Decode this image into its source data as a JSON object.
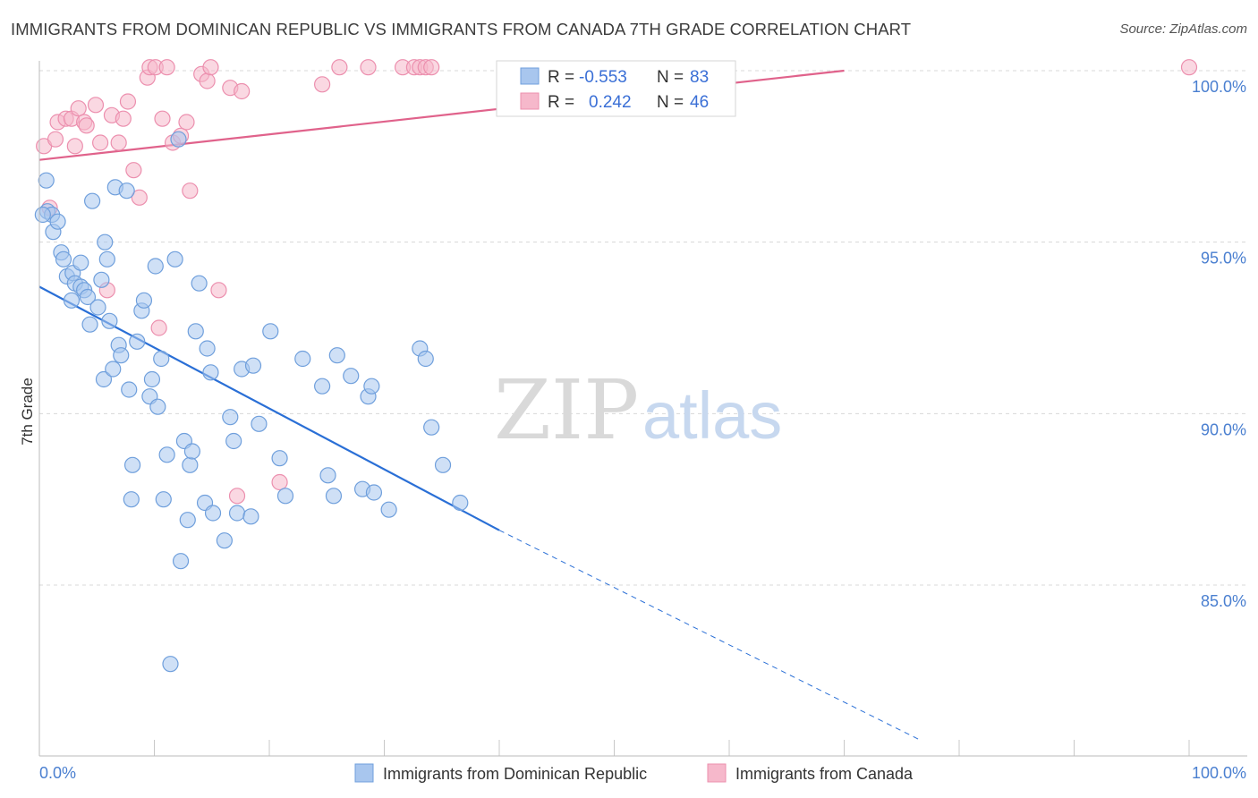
{
  "title": "IMMIGRANTS FROM DOMINICAN REPUBLIC VS IMMIGRANTS FROM CANADA 7TH GRADE CORRELATION CHART",
  "source": "Source: ZipAtlas.com",
  "watermark": {
    "part1": "ZIP",
    "part2": "atlas"
  },
  "colors": {
    "blue_fill": "#a8c6ee",
    "blue_stroke": "#6f9fdc",
    "blue_line": "#2a6fd6",
    "pink_fill": "#f6b8cb",
    "pink_stroke": "#ec8fae",
    "pink_line": "#e0628b",
    "grid": "#d8d8d8",
    "axis_text": "#4a7fd0"
  },
  "stats": {
    "row1": {
      "r_label": "R =",
      "r_value": "-0.553",
      "n_label": "N =",
      "n_value": "83"
    },
    "row2": {
      "r_label": "R =",
      "r_value": "0.242",
      "n_label": "N =",
      "n_value": "46"
    }
  },
  "legend": {
    "series1": "Immigrants from Dominican Republic",
    "series2": "Immigrants from Canada"
  },
  "chart_data": {
    "type": "scatter",
    "title": "IMMIGRANTS FROM DOMINICAN REPUBLIC VS IMMIGRANTS FROM CANADA 7TH GRADE CORRELATION CHART",
    "xlabel": "",
    "ylabel": "7th Grade",
    "xlim": [
      0,
      100
    ],
    "ylim": [
      80.5,
      100.8
    ],
    "x_ticks": [
      "0.0%",
      "100.0%"
    ],
    "y_ticks": [
      {
        "value": 100,
        "label": "100.0%"
      },
      {
        "value": 95,
        "label": "95.0%"
      },
      {
        "value": 90,
        "label": "90.0%"
      },
      {
        "value": 85,
        "label": "85.0%"
      }
    ],
    "grid": true,
    "legend_position": "bottom-center",
    "series": [
      {
        "name": "Immigrants from Dominican Republic",
        "color": "#a8c6ee",
        "r": -0.553,
        "n": 83,
        "trend": {
          "x0": 0,
          "y0": 93.7,
          "x1": 40,
          "y1": 86.6,
          "dash_to_x": 76.5,
          "dash_to_y": 80.5
        },
        "points": [
          [
            0.6,
            96.8
          ],
          [
            0.7,
            95.9
          ],
          [
            1.2,
            95.3
          ],
          [
            1.1,
            95.8
          ],
          [
            1.6,
            95.6
          ],
          [
            1.9,
            94.7
          ],
          [
            2.1,
            94.5
          ],
          [
            2.4,
            94.0
          ],
          [
            2.8,
            93.3
          ],
          [
            2.9,
            94.1
          ],
          [
            3.1,
            93.8
          ],
          [
            3.6,
            93.7
          ],
          [
            3.6,
            94.4
          ],
          [
            3.9,
            93.6
          ],
          [
            4.2,
            93.4
          ],
          [
            4.4,
            92.6
          ],
          [
            4.6,
            96.2
          ],
          [
            5.1,
            93.1
          ],
          [
            5.4,
            93.9
          ],
          [
            5.6,
            91.0
          ],
          [
            5.7,
            95.0
          ],
          [
            5.9,
            94.5
          ],
          [
            6.1,
            92.7
          ],
          [
            6.4,
            91.3
          ],
          [
            6.6,
            96.6
          ],
          [
            6.9,
            92.0
          ],
          [
            7.1,
            91.7
          ],
          [
            7.6,
            96.5
          ],
          [
            7.8,
            90.7
          ],
          [
            8.1,
            88.5
          ],
          [
            8.0,
            87.5
          ],
          [
            8.5,
            92.1
          ],
          [
            8.9,
            93.0
          ],
          [
            9.1,
            93.3
          ],
          [
            9.6,
            90.5
          ],
          [
            9.8,
            91.0
          ],
          [
            10.1,
            94.3
          ],
          [
            10.3,
            90.2
          ],
          [
            10.6,
            91.6
          ],
          [
            10.8,
            87.5
          ],
          [
            11.1,
            88.8
          ],
          [
            11.4,
            82.7
          ],
          [
            11.8,
            94.5
          ],
          [
            12.1,
            98.0
          ],
          [
            12.3,
            85.7
          ],
          [
            12.6,
            89.2
          ],
          [
            12.9,
            86.9
          ],
          [
            13.1,
            88.5
          ],
          [
            13.3,
            88.9
          ],
          [
            13.6,
            92.4
          ],
          [
            13.9,
            93.8
          ],
          [
            14.4,
            87.4
          ],
          [
            14.6,
            91.9
          ],
          [
            14.9,
            91.2
          ],
          [
            15.1,
            87.1
          ],
          [
            16.1,
            86.3
          ],
          [
            16.6,
            89.9
          ],
          [
            16.9,
            89.2
          ],
          [
            17.2,
            87.1
          ],
          [
            17.6,
            91.3
          ],
          [
            18.4,
            87.0
          ],
          [
            18.6,
            91.4
          ],
          [
            19.1,
            89.7
          ],
          [
            20.1,
            92.4
          ],
          [
            20.9,
            88.7
          ],
          [
            21.4,
            87.6
          ],
          [
            22.9,
            91.6
          ],
          [
            24.6,
            90.8
          ],
          [
            25.1,
            88.2
          ],
          [
            25.6,
            87.6
          ],
          [
            25.9,
            91.7
          ],
          [
            27.1,
            91.1
          ],
          [
            28.1,
            87.8
          ],
          [
            28.6,
            90.5
          ],
          [
            28.9,
            90.8
          ],
          [
            29.1,
            87.7
          ],
          [
            30.4,
            87.2
          ],
          [
            33.1,
            91.9
          ],
          [
            33.6,
            91.6
          ],
          [
            34.1,
            89.6
          ],
          [
            35.1,
            88.5
          ],
          [
            36.6,
            87.4
          ],
          [
            0.3,
            95.8
          ]
        ]
      },
      {
        "name": "Immigrants from Canada",
        "color": "#f6b8cb",
        "r": 0.242,
        "n": 46,
        "trend": {
          "x0": 0,
          "y0": 97.4,
          "x1": 70,
          "y1": 100.0
        },
        "points": [
          [
            0.4,
            97.8
          ],
          [
            0.9,
            96.0
          ],
          [
            1.4,
            98.0
          ],
          [
            1.6,
            98.5
          ],
          [
            2.3,
            98.6
          ],
          [
            2.8,
            98.6
          ],
          [
            3.1,
            97.8
          ],
          [
            3.4,
            98.9
          ],
          [
            3.9,
            98.5
          ],
          [
            4.1,
            98.4
          ],
          [
            4.9,
            99.0
          ],
          [
            5.3,
            97.9
          ],
          [
            5.9,
            93.6
          ],
          [
            6.3,
            98.7
          ],
          [
            6.9,
            97.9
          ],
          [
            7.3,
            98.6
          ],
          [
            7.7,
            99.1
          ],
          [
            8.2,
            97.1
          ],
          [
            8.7,
            96.3
          ],
          [
            9.4,
            99.8
          ],
          [
            9.6,
            100.1
          ],
          [
            10.1,
            100.1
          ],
          [
            10.4,
            92.5
          ],
          [
            10.7,
            98.6
          ],
          [
            11.1,
            100.1
          ],
          [
            11.6,
            97.9
          ],
          [
            12.3,
            98.1
          ],
          [
            12.8,
            98.5
          ],
          [
            13.1,
            96.5
          ],
          [
            14.1,
            99.9
          ],
          [
            14.6,
            99.7
          ],
          [
            14.9,
            100.1
          ],
          [
            15.6,
            93.6
          ],
          [
            16.6,
            99.5
          ],
          [
            17.2,
            87.6
          ],
          [
            17.6,
            99.4
          ],
          [
            20.9,
            88.0
          ],
          [
            24.6,
            99.6
          ],
          [
            26.1,
            100.1
          ],
          [
            28.6,
            100.1
          ],
          [
            31.6,
            100.1
          ],
          [
            32.6,
            100.1
          ],
          [
            33.1,
            100.1
          ],
          [
            33.6,
            100.1
          ],
          [
            34.1,
            100.1
          ],
          [
            100.0,
            100.1
          ]
        ]
      }
    ]
  }
}
